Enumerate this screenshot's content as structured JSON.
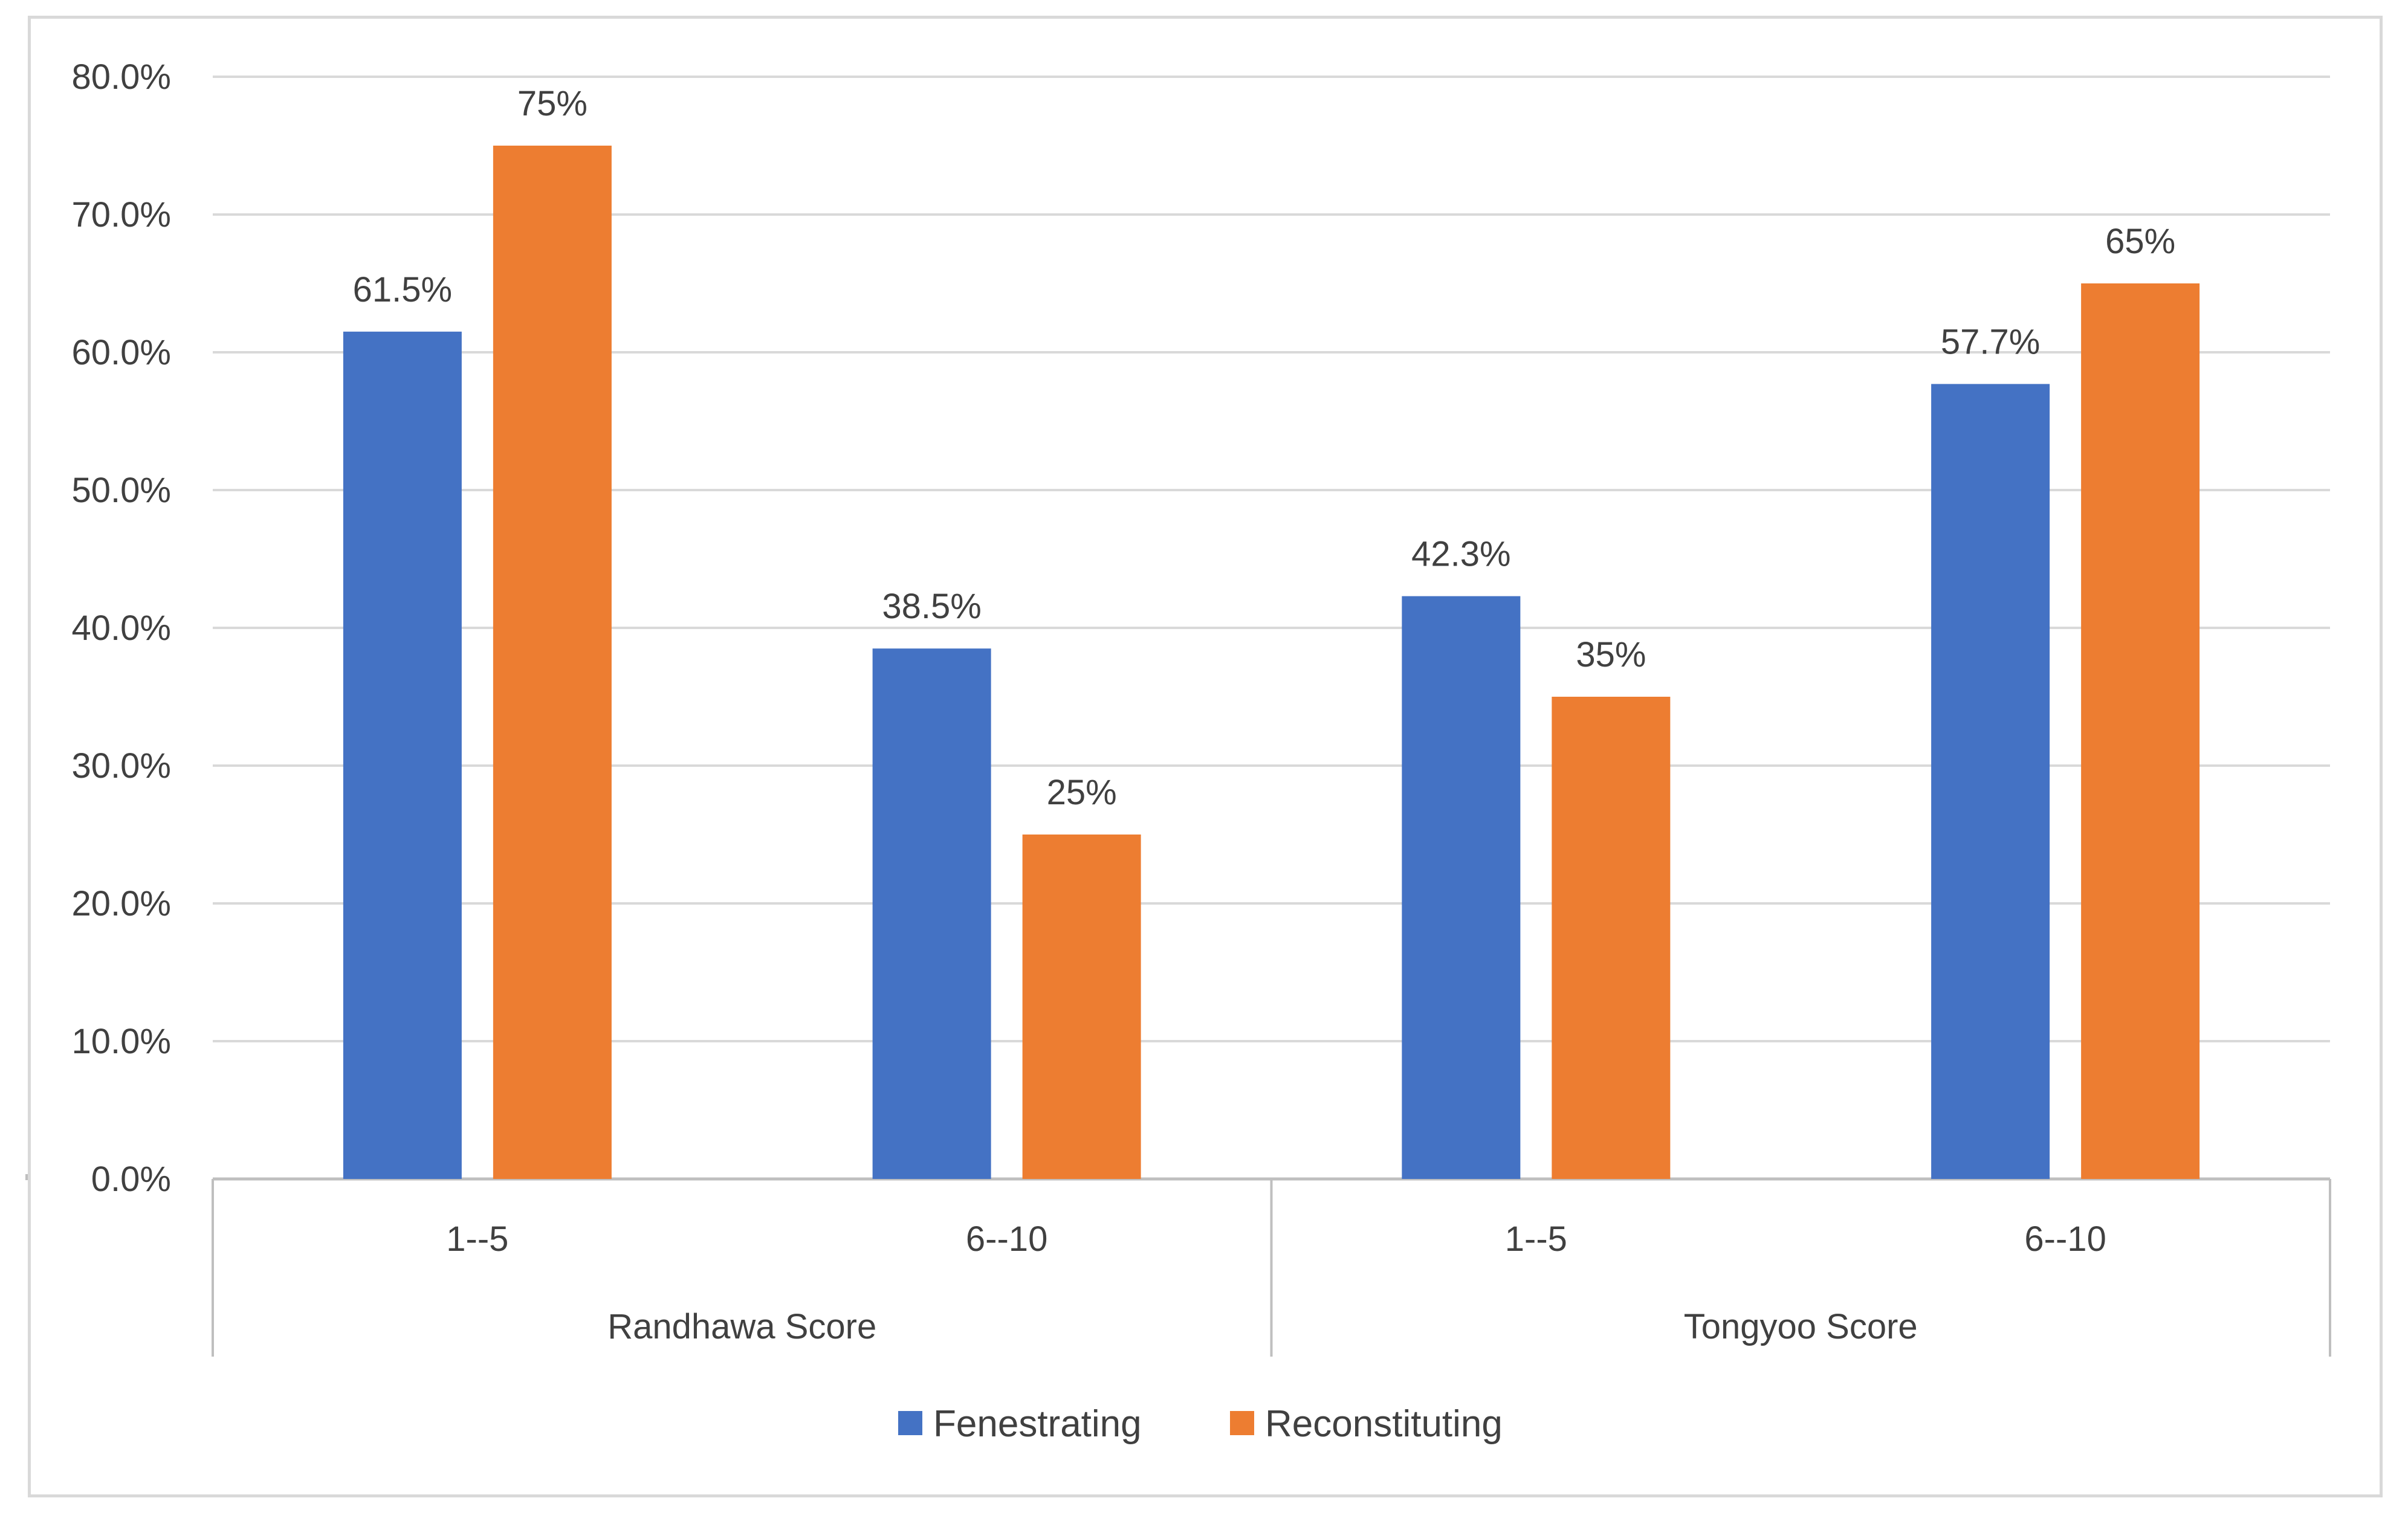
{
  "chart_data": {
    "type": "bar",
    "title": "",
    "xlabel": "",
    "ylabel": "",
    "ylim": [
      0,
      80
    ],
    "yticks": [
      0,
      10,
      20,
      30,
      40,
      50,
      60,
      70,
      80
    ],
    "ytick_labels": [
      "0.0%",
      "10.0%",
      "20.0%",
      "30.0%",
      "40.0%",
      "50.0%",
      "60.0%",
      "70.0%",
      "80.0%"
    ],
    "grid": true,
    "legend_position": "bottom",
    "groups": [
      "Randhawa Score",
      "Tongyoo Score"
    ],
    "categories": [
      "1--5",
      "6--10",
      "1--5",
      "6--10"
    ],
    "category_group": [
      0,
      0,
      1,
      1
    ],
    "series": [
      {
        "name": "Fenestrating",
        "color": "#4472c4",
        "values": [
          61.5,
          38.5,
          42.3,
          57.7
        ],
        "labels": [
          "61.5%",
          "38.5%",
          "42.3%",
          "57.7%"
        ]
      },
      {
        "name": "Reconstituting",
        "color": "#ed7d31",
        "values": [
          75,
          25,
          35,
          65
        ],
        "labels": [
          "75%",
          "25%",
          "35%",
          "65%"
        ]
      }
    ],
    "gridline_color": "#d9d9d9",
    "axis_color": "#bfbfbf"
  }
}
